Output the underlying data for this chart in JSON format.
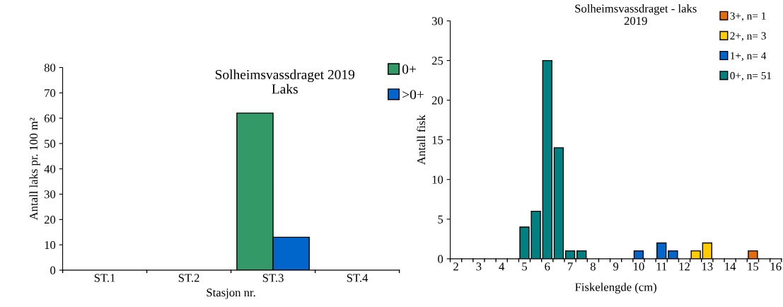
{
  "chart_data": [
    {
      "type": "bar",
      "title": "Solheimsvassdraget 2019\nLaks",
      "xlabel": "Stasjon nr.",
      "ylabel": "Antall laks pr. 100 m²",
      "categories": [
        "ST.1",
        "ST.2",
        "ST.3",
        "ST.4"
      ],
      "series": [
        {
          "name": "0+",
          "color": "#339966",
          "values": [
            0,
            0,
            62,
            0
          ]
        },
        {
          "name": ">0+",
          "color": "#0066cc",
          "values": [
            0,
            0,
            13,
            0
          ]
        }
      ],
      "ylim": [
        0,
        80
      ],
      "yticks": [
        0,
        10,
        20,
        30,
        40,
        50,
        60,
        70,
        80
      ],
      "grid": false,
      "legend": "top right"
    },
    {
      "type": "bar",
      "stacked": true,
      "title": "Solheimsvassdraget - laks\n2019",
      "xlabel": "Fiskelengde (cm)",
      "ylabel": "Antall fisk",
      "categories": [
        "2",
        null,
        "3",
        null,
        "4",
        null,
        "5",
        null,
        "6",
        null,
        "7",
        null,
        "8",
        null,
        "9",
        null,
        "10",
        null,
        "11",
        null,
        "12",
        null,
        "13",
        null,
        "14",
        null,
        "15",
        null,
        "16"
      ],
      "series": [
        {
          "name": "0+, n= 51",
          "color": "#008080",
          "values": [
            null,
            null,
            null,
            null,
            null,
            null,
            4,
            6,
            25,
            14,
            1,
            1,
            null,
            null,
            null,
            null,
            null,
            null,
            null,
            null,
            null,
            null,
            null,
            null,
            null,
            null,
            null,
            null,
            null
          ]
        },
        {
          "name": "1+, n= 4",
          "color": "#0066cc",
          "values": [
            null,
            null,
            null,
            null,
            null,
            null,
            null,
            null,
            null,
            null,
            null,
            null,
            null,
            null,
            null,
            null,
            1,
            null,
            2,
            1,
            null,
            null,
            null,
            null,
            null,
            null,
            null,
            null,
            null
          ]
        },
        {
          "name": "2+, n= 3",
          "color": "#ffcc00",
          "values": [
            null,
            null,
            null,
            null,
            null,
            null,
            null,
            null,
            null,
            null,
            null,
            null,
            null,
            null,
            null,
            null,
            null,
            null,
            null,
            null,
            null,
            1,
            2,
            null,
            null,
            null,
            null,
            null,
            null
          ]
        },
        {
          "name": "3+, n= 1",
          "color": "#e46c0a",
          "values": [
            null,
            null,
            null,
            null,
            null,
            null,
            null,
            null,
            null,
            null,
            null,
            null,
            null,
            null,
            null,
            null,
            null,
            null,
            null,
            null,
            null,
            null,
            null,
            null,
            null,
            null,
            1,
            null,
            null
          ]
        }
      ],
      "ylim": [
        0,
        30
      ],
      "yticks": [
        0,
        5,
        10,
        15,
        20,
        25,
        30
      ],
      "grid": false,
      "legend": "top right"
    }
  ]
}
